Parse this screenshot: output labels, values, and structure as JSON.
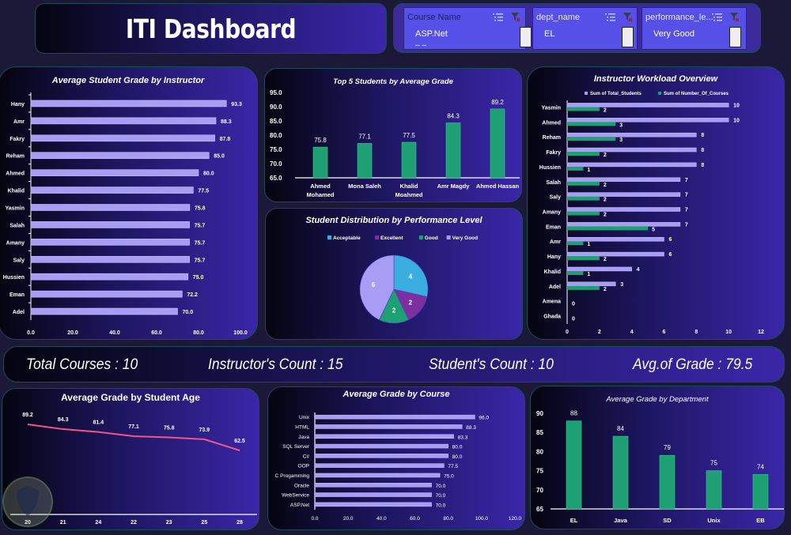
{
  "header": {
    "title": "ITI Dashboard"
  },
  "slicers": [
    {
      "label": "Course Name",
      "selected": "ASP.Net",
      "extra": "– –",
      "icons": [
        "multi-select-icon",
        "clear-filter-icon"
      ]
    },
    {
      "label": "dept_name",
      "selected": "EL",
      "icons": [
        "multi-select-icon",
        "clear-filter-icon"
      ]
    },
    {
      "label": "performance_le...",
      "selected": "Very Good",
      "icons": [
        "multi-select-icon",
        "clear-filter-icon"
      ]
    }
  ],
  "kpis": [
    {
      "label": "Total Courses : 10"
    },
    {
      "label": "Instructor's Count : 15"
    },
    {
      "label": "Student's Count : 10"
    },
    {
      "label": "Avg.of Grade : 79.5"
    }
  ],
  "colors": {
    "bar_lavender": "#a79df5",
    "bar_green": "#1f9f74",
    "line_pink": "#f0558c",
    "pie_acceptable": "#3aaee0",
    "pie_excellent": "#7b2fa0",
    "pie_good": "#1f9f74",
    "pie_verygood": "#a79df5"
  },
  "chart_data": [
    {
      "id": "grade_by_instructor",
      "type": "bar",
      "orientation": "horizontal",
      "title": "Average Student Grade by Instructor",
      "categories": [
        "Hany",
        "Amr",
        "Fakry",
        "Reham",
        "Ahmed",
        "Khalid",
        "Yasmin",
        "Salah",
        "Amany",
        "Saly",
        "Hussien",
        "Eman",
        "Adel"
      ],
      "values": [
        93.3,
        88.3,
        87.8,
        85.0,
        80.0,
        77.5,
        75.8,
        75.7,
        75.7,
        75.7,
        75.0,
        72.2,
        70.0
      ],
      "labels": [
        "93.3",
        "88.3",
        "87.8",
        "85.0",
        "80.0",
        "77.5",
        "75.8",
        "75.7",
        "75.7",
        "75.7",
        "75.0",
        "72.2",
        "70.0"
      ],
      "xlim": [
        0,
        100
      ],
      "xticks": [
        "0.0",
        "20.0",
        "40.0",
        "60.0",
        "80.0",
        "100.0"
      ]
    },
    {
      "id": "top5_students",
      "type": "bar",
      "title": "Top 5 Students by Average Grade",
      "categories": [
        [
          "Ahmed",
          "Mohamed"
        ],
        [
          "Mona Saleh"
        ],
        [
          "Khalid",
          "Moahmed"
        ],
        [
          "Amr Magdy"
        ],
        [
          "Ahmed Hassan"
        ]
      ],
      "values": [
        75.8,
        77.1,
        77.5,
        84.3,
        89.2
      ],
      "labels": [
        "75.8",
        "77.1",
        "77.5",
        "84.3",
        "89.2"
      ],
      "ylim": [
        65,
        95
      ],
      "yticks": [
        "95.0",
        "90.0",
        "85.0",
        "80.0",
        "75.0",
        "70.0",
        "65.0"
      ]
    },
    {
      "id": "performance_distribution",
      "type": "pie",
      "title": "Student Distribution by Performance Level",
      "legend": [
        "Acceptable",
        "Excellent",
        "Good",
        "Very Good"
      ],
      "values": [
        4,
        2,
        2,
        6
      ],
      "labels": [
        "4",
        "2",
        "2",
        "6"
      ],
      "legend_position": "top"
    },
    {
      "id": "instructor_workload",
      "type": "bar",
      "orientation": "horizontal",
      "title": "Instructor Workload Overview",
      "categories": [
        "Yasmin",
        "Ahmed",
        "Reham",
        "Fakry",
        "Hussien",
        "Salah",
        "Saly",
        "Amany",
        "Eman",
        "Amr",
        "Hany",
        "Khalid",
        "Adel",
        "Amena",
        "Ghada"
      ],
      "series": [
        {
          "name": "Sum of Total_Students",
          "values": [
            10,
            10,
            8,
            8,
            8,
            7,
            7,
            7,
            7,
            6,
            6,
            4,
            3,
            0,
            0
          ]
        },
        {
          "name": "Sum of Number_Of_Courses",
          "values": [
            2,
            3,
            3,
            2,
            1,
            2,
            2,
            2,
            5,
            1,
            2,
            1,
            2,
            null,
            null
          ]
        }
      ],
      "xlim": [
        0,
        12
      ],
      "xticks": [
        "0",
        "2",
        "4",
        "6",
        "8",
        "10",
        "12"
      ],
      "legend_position": "top"
    },
    {
      "id": "grade_by_age",
      "type": "line",
      "title": "Average Grade by Student Age",
      "categories": [
        "20",
        "21",
        "24",
        "22",
        "23",
        "25",
        "28"
      ],
      "values": [
        89.2,
        84.3,
        81.4,
        77.1,
        75.8,
        73.9,
        62.5
      ],
      "labels": [
        "89.2",
        "84.3",
        "81.4",
        "77.1",
        "75.8",
        "73.9",
        "62.5"
      ]
    },
    {
      "id": "grade_by_course",
      "type": "bar",
      "orientation": "horizontal",
      "title": "Average Grade by Course",
      "categories": [
        "Unix",
        "HTML",
        "Java",
        "SQL Server",
        "C#",
        "OOP",
        "C Progamming",
        "Oracle",
        "WebService",
        "ASP.Net"
      ],
      "values": [
        96.0,
        88.3,
        83.3,
        80.0,
        80.0,
        77.5,
        75.0,
        70.0,
        70.0,
        70.0
      ],
      "labels": [
        "96.0",
        "88.3",
        "83.3",
        "80.0",
        "80.0",
        "77.5",
        "75.0",
        "70.0",
        "70.0",
        "70.0"
      ],
      "xlim": [
        0,
        120
      ],
      "xticks": [
        "0.0",
        "20.0",
        "40.0",
        "60.0",
        "80.0",
        "100.0",
        "120.0"
      ]
    },
    {
      "id": "grade_by_department",
      "type": "bar",
      "title": "Average Grade by Department",
      "categories": [
        "EL",
        "Java",
        "SD",
        "Unix",
        "EB"
      ],
      "values": [
        88,
        84,
        79,
        75,
        74
      ],
      "labels": [
        "88",
        "84",
        "79",
        "75",
        "74"
      ],
      "ylim": [
        65,
        90
      ],
      "yticks": [
        "90",
        "85",
        "80",
        "75",
        "70",
        "65"
      ]
    }
  ]
}
